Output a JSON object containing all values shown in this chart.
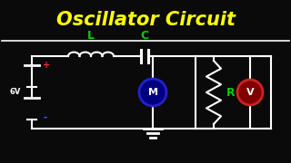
{
  "title": "Oscillator Circuit",
  "title_color": "#FFFF00",
  "title_fontsize": 15,
  "background_color": "#0a0a0a",
  "wire_color": "#FFFFFF",
  "wire_lw": 1.5,
  "label_L": "L",
  "label_C": "C",
  "label_R": "R",
  "label_6V": "6V",
  "label_plus": "+",
  "label_minus": "-",
  "label_M": "M",
  "label_V": "V",
  "color_L": "#00CC00",
  "color_C": "#00CC00",
  "color_R": "#00CC00",
  "color_6V": "#FFFFFF",
  "color_plus": "#FF2222",
  "color_minus": "#4466FF",
  "color_M_circle": "#000080",
  "color_M_border": "#2222CC",
  "color_M_text": "#FFFFFF",
  "color_V_circle": "#800000",
  "color_V_border": "#CC2222",
  "color_V_text": "#FFFFFF",
  "divider_color": "#FFFFFF",
  "divider_lw": 1.2
}
